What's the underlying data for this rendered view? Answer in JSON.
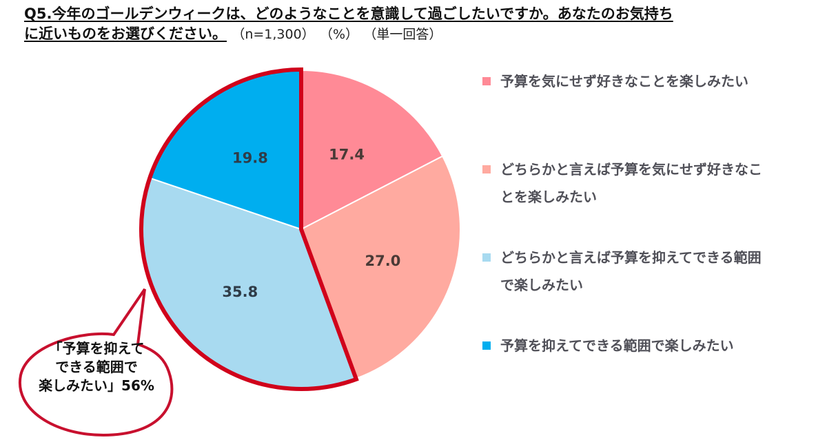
{
  "header": {
    "question_line1": "Q5.今年のゴールデンウィークは、どのようなことを意識して過ごしたいですか。あなたのお気持ち",
    "question_line2": "に近いものをお選びください。",
    "sample_size": "（n=1,300）",
    "unit": "（%）",
    "answer_type": "（単一回答）"
  },
  "callout": {
    "line1": "「予算を抑えて",
    "line2": "できる範囲で",
    "line3": "楽しみたい」56%"
  },
  "legend": [
    {
      "label_line1": "予算を気にせず好きなことを楽しみたい",
      "label_line2": "",
      "color": "#FF8A96"
    },
    {
      "label_line1": "どちらかと言えば予算を気にせず好きなこ",
      "label_line2": "とを楽しみたい",
      "color": "#FFAAA0"
    },
    {
      "label_line1": "どちらかと言えば予算を抑えてできる範囲",
      "label_line2": "で楽しみたい",
      "color": "#A8DAF0"
    },
    {
      "label_line1": "予算を抑えてできる範囲で楽しみたい",
      "label_line2": "",
      "color": "#00AEEF"
    }
  ],
  "slice_labels": [
    "17.4",
    "27.0",
    "35.8",
    "19.8"
  ],
  "chart_data": {
    "type": "pie",
    "title": "Q5.今年のゴールデンウィークは、どのようなことを意識して過ごしたいですか。あなたのお気持ちに近いものをお選びください。（n=1,300）（%）（単一回答）",
    "categories": [
      "予算を気にせず好きなことを楽しみたい",
      "どちらかと言えば予算を気にせず好きなことを楽しみたい",
      "どちらかと言えば予算を抑えてできる範囲で楽しみたい",
      "予算を抑えてできる範囲で楽しみたい"
    ],
    "values": [
      17.4,
      27.0,
      35.8,
      19.8
    ],
    "colors": [
      "#FF8A96",
      "#FFAAA0",
      "#A8DAF0",
      "#00AEEF"
    ],
    "start_angle": "12 o'clock, clockwise",
    "legend_position": "right",
    "annotations": [
      {
        "text": "「予算を抑えてできる範囲で楽しみたい」56%",
        "highlight": "slices 3+4 outlined in red",
        "color": "#D0021B"
      }
    ],
    "n": 1300,
    "unit": "%"
  }
}
